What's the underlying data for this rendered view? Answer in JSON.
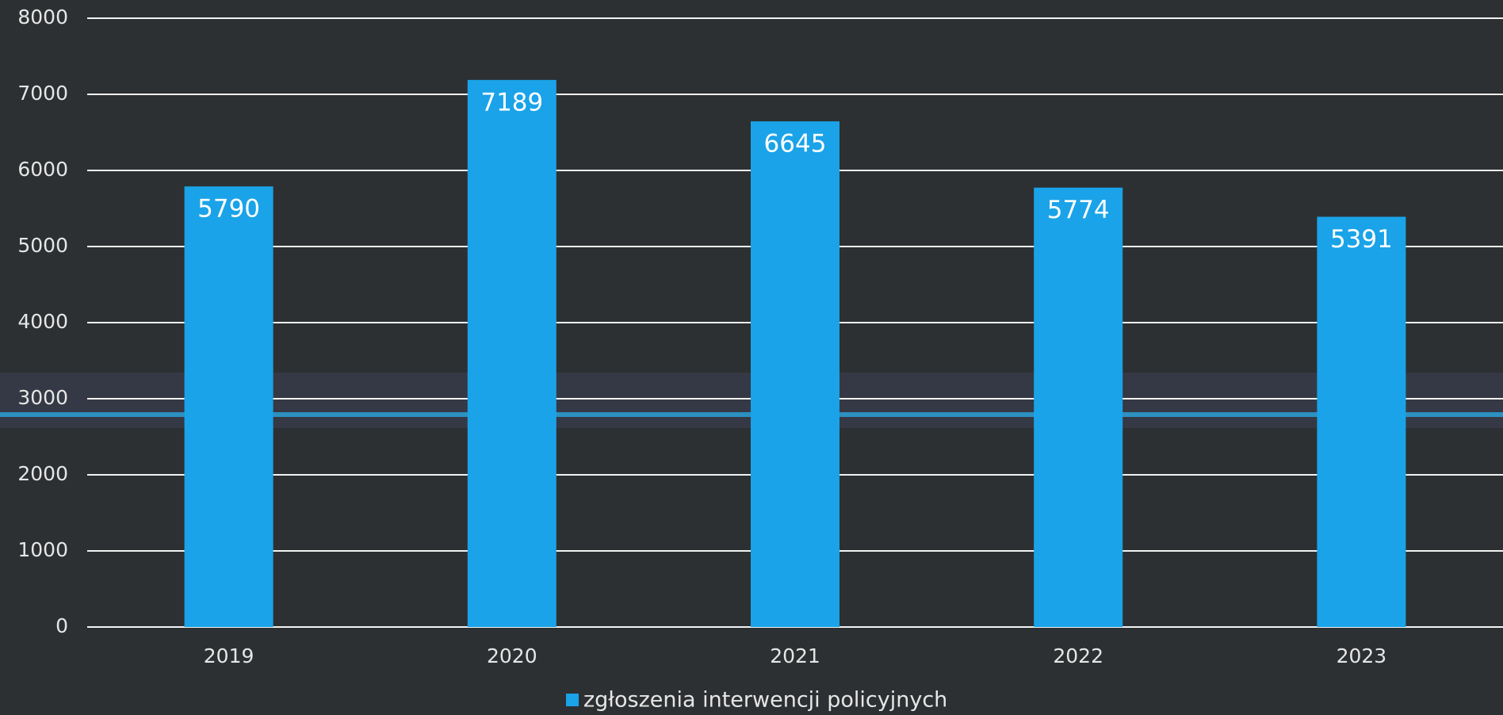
{
  "chart_data": {
    "type": "bar",
    "categories": [
      "2019",
      "2020",
      "2021",
      "2022",
      "2023"
    ],
    "series": [
      {
        "name": "zgłoszenia interwencji policyjnych",
        "color": "#1aa3e8",
        "values": [
          5790,
          7189,
          6645,
          5774,
          5391
        ]
      }
    ],
    "ylim": [
      0,
      8000
    ],
    "yticks": [
      0,
      1000,
      2000,
      3000,
      4000,
      5000,
      6000,
      7000,
      8000
    ],
    "grid": true
  }
}
